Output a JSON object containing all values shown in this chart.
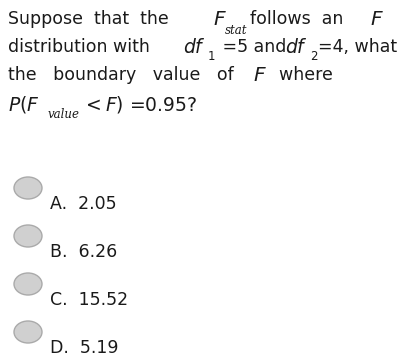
{
  "background_color": "#ffffff",
  "text_color": "#1a1a1a",
  "font_size_main": 12.5,
  "font_size_math": 13.5,
  "font_size_sub": 8.5,
  "font_size_options": 12.5,
  "circle_color": "#d0d0d0",
  "circle_edge_color": "#aaaaaa",
  "options": [
    "A.  2.05",
    "B.  6.26",
    "C.  15.52",
    "D.  5.19"
  ]
}
